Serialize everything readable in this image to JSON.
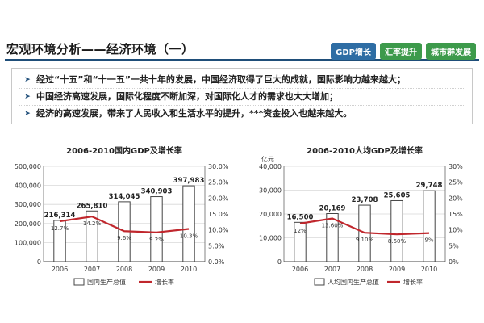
{
  "page": {
    "title": "宏观环境分析——经济环境（一）",
    "tags": [
      "GDP增长",
      "汇率提升",
      "城市群发展"
    ],
    "bullets": [
      "经过“十五”和“十一五”一共十年的发展，中国经济取得了巨大的成就，国际影响力越来越大；",
      "中国经济高速发展，国际化程度不断加深，对国际化人才的需求也大大增加；",
      "经济的高速发展，带来了人民收入和生活水平的提升，***资金投入也越来越大。"
    ]
  },
  "chart_data": [
    {
      "type": "bar",
      "title": "2006-2010国内GDP及增长率",
      "unit": "",
      "categories": [
        "2006",
        "2007",
        "2008",
        "2009",
        "2010"
      ],
      "series": [
        {
          "name": "国内生产总值",
          "type": "bar",
          "axis": "left",
          "values": [
            216314,
            265810,
            314045,
            340903,
            397983
          ],
          "labels": [
            "216,314",
            "265,810",
            "314,045",
            "340,903",
            "397,983"
          ]
        },
        {
          "name": "增长率",
          "type": "line",
          "axis": "right",
          "values": [
            12.7,
            14.2,
            9.6,
            9.2,
            10.3
          ],
          "labels": [
            "12.7%",
            "14.2%",
            "9.6%",
            "9.2%",
            "10.3%"
          ]
        }
      ],
      "ylim_left": [
        0,
        500000
      ],
      "ylim_right": [
        0,
        30
      ],
      "left_ticks": [
        "0",
        "100,000",
        "200,000",
        "300,000",
        "400,000",
        "500,000"
      ],
      "right_ticks": [
        "0.0%",
        "5.0%",
        "10.0%",
        "15.0%",
        "20.0%",
        "25.0%",
        "30.0%"
      ],
      "colors": {
        "bar_fill": "#ffffff",
        "bar_stroke": "#444444",
        "line": "#c0272d"
      },
      "legend": "bottom"
    },
    {
      "type": "bar",
      "title": "2006-2010人均GDP及增长率",
      "unit": "亿元",
      "categories": [
        "2006",
        "2007",
        "2008",
        "2009",
        "2010"
      ],
      "series": [
        {
          "name": "人均国内生产总值",
          "type": "bar",
          "axis": "left",
          "values": [
            16500,
            20169,
            23708,
            25605,
            29748
          ],
          "labels": [
            "16,500",
            "20,169",
            "23,708",
            "25,605",
            "29,748"
          ]
        },
        {
          "name": "增长率",
          "type": "line",
          "axis": "right",
          "values": [
            12,
            13.6,
            9.1,
            8.6,
            9
          ],
          "labels": [
            "12%",
            "13.60%",
            "9.10%",
            "8.60%",
            "9%"
          ]
        }
      ],
      "ylim_left": [
        0,
        40000
      ],
      "ylim_right": [
        0,
        30
      ],
      "left_ticks": [
        "0",
        "10,000",
        "20,000",
        "30,000",
        "40,000"
      ],
      "right_ticks": [
        "0%",
        "5%",
        "10%",
        "15%",
        "20%",
        "25%",
        "30%"
      ],
      "colors": {
        "bar_fill": "#ffffff",
        "bar_stroke": "#444444",
        "line": "#c0272d"
      },
      "legend": "bottom"
    }
  ]
}
